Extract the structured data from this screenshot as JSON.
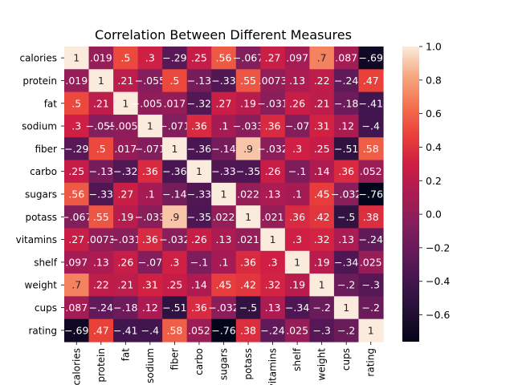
{
  "chart_data": {
    "type": "heatmap",
    "title": "Correlation Between Different Measures",
    "xlabel": "",
    "ylabel": "",
    "x_labels": [
      "calories",
      "protein",
      "fat",
      "sodium",
      "fiber",
      "carbo",
      "sugars",
      "potass",
      "vitamins",
      "shelf",
      "weight",
      "cups",
      "rating"
    ],
    "y_labels": [
      "calories",
      "protein",
      "fat",
      "sodium",
      "fiber",
      "carbo",
      "sugars",
      "potass",
      "vitamins",
      "shelf",
      "weight",
      "cups",
      "rating"
    ],
    "values": [
      [
        1,
        0.019,
        0.5,
        0.3,
        -0.29,
        0.25,
        0.56,
        -0.067,
        0.27,
        0.097,
        0.7,
        0.087,
        -0.69
      ],
      [
        0.019,
        1,
        0.21,
        -0.055,
        0.5,
        -0.13,
        -0.33,
        0.55,
        0.0073,
        0.13,
        0.22,
        -0.24,
        0.47
      ],
      [
        0.5,
        0.21,
        1,
        -0.0055,
        0.017,
        -0.32,
        0.27,
        0.19,
        -0.031,
        0.26,
        0.21,
        -0.18,
        -0.41
      ],
      [
        0.3,
        -0.055,
        -0.0055,
        1,
        -0.071,
        0.36,
        0.1,
        -0.033,
        0.36,
        -0.07,
        0.31,
        0.12,
        -0.4
      ],
      [
        -0.29,
        0.5,
        0.017,
        -0.071,
        1,
        -0.36,
        -0.14,
        0.9,
        -0.032,
        0.3,
        0.25,
        -0.51,
        0.58
      ],
      [
        0.25,
        -0.13,
        -0.32,
        0.36,
        -0.36,
        1,
        -0.33,
        -0.35,
        0.26,
        -0.1,
        0.14,
        0.36,
        0.052
      ],
      [
        0.56,
        -0.33,
        0.27,
        0.1,
        -0.14,
        -0.33,
        1,
        0.022,
        0.13,
        0.1,
        0.45,
        -0.032,
        -0.76
      ],
      [
        -0.067,
        0.55,
        0.19,
        -0.033,
        0.9,
        -0.35,
        0.022,
        1,
        0.021,
        0.36,
        0.42,
        -0.5,
        0.38
      ],
      [
        0.27,
        0.0073,
        -0.031,
        0.36,
        -0.032,
        0.26,
        0.13,
        0.021,
        1,
        0.3,
        0.32,
        0.13,
        -0.24
      ],
      [
        0.097,
        0.13,
        0.26,
        -0.07,
        0.3,
        -0.1,
        0.1,
        0.36,
        0.3,
        1,
        0.19,
        -0.34,
        0.025
      ],
      [
        0.7,
        0.22,
        0.21,
        0.31,
        0.25,
        0.14,
        0.45,
        0.42,
        0.32,
        0.19,
        1,
        -0.2,
        -0.3
      ],
      [
        0.087,
        -0.24,
        -0.18,
        0.12,
        -0.51,
        0.36,
        -0.032,
        -0.5,
        0.13,
        -0.34,
        -0.2,
        1,
        -0.2
      ],
      [
        -0.69,
        0.47,
        -0.41,
        -0.4,
        0.58,
        0.052,
        -0.76,
        0.38,
        -0.24,
        0.025,
        -0.3,
        -0.2,
        1
      ]
    ],
    "vmin": -0.76,
    "vmax": 1,
    "colormap": "rocket",
    "colorbar_ticks": [
      1.0,
      0.8,
      0.6,
      0.4,
      0.2,
      0.0,
      -0.2,
      -0.4,
      -0.6
    ],
    "colorbar_tick_labels": [
      "1.0",
      "0.8",
      "0.6",
      "0.4",
      "0.2",
      "0.0",
      "−0.2",
      "−0.4",
      "−0.6"
    ],
    "annotations": true,
    "legend": "colorbar-right"
  }
}
